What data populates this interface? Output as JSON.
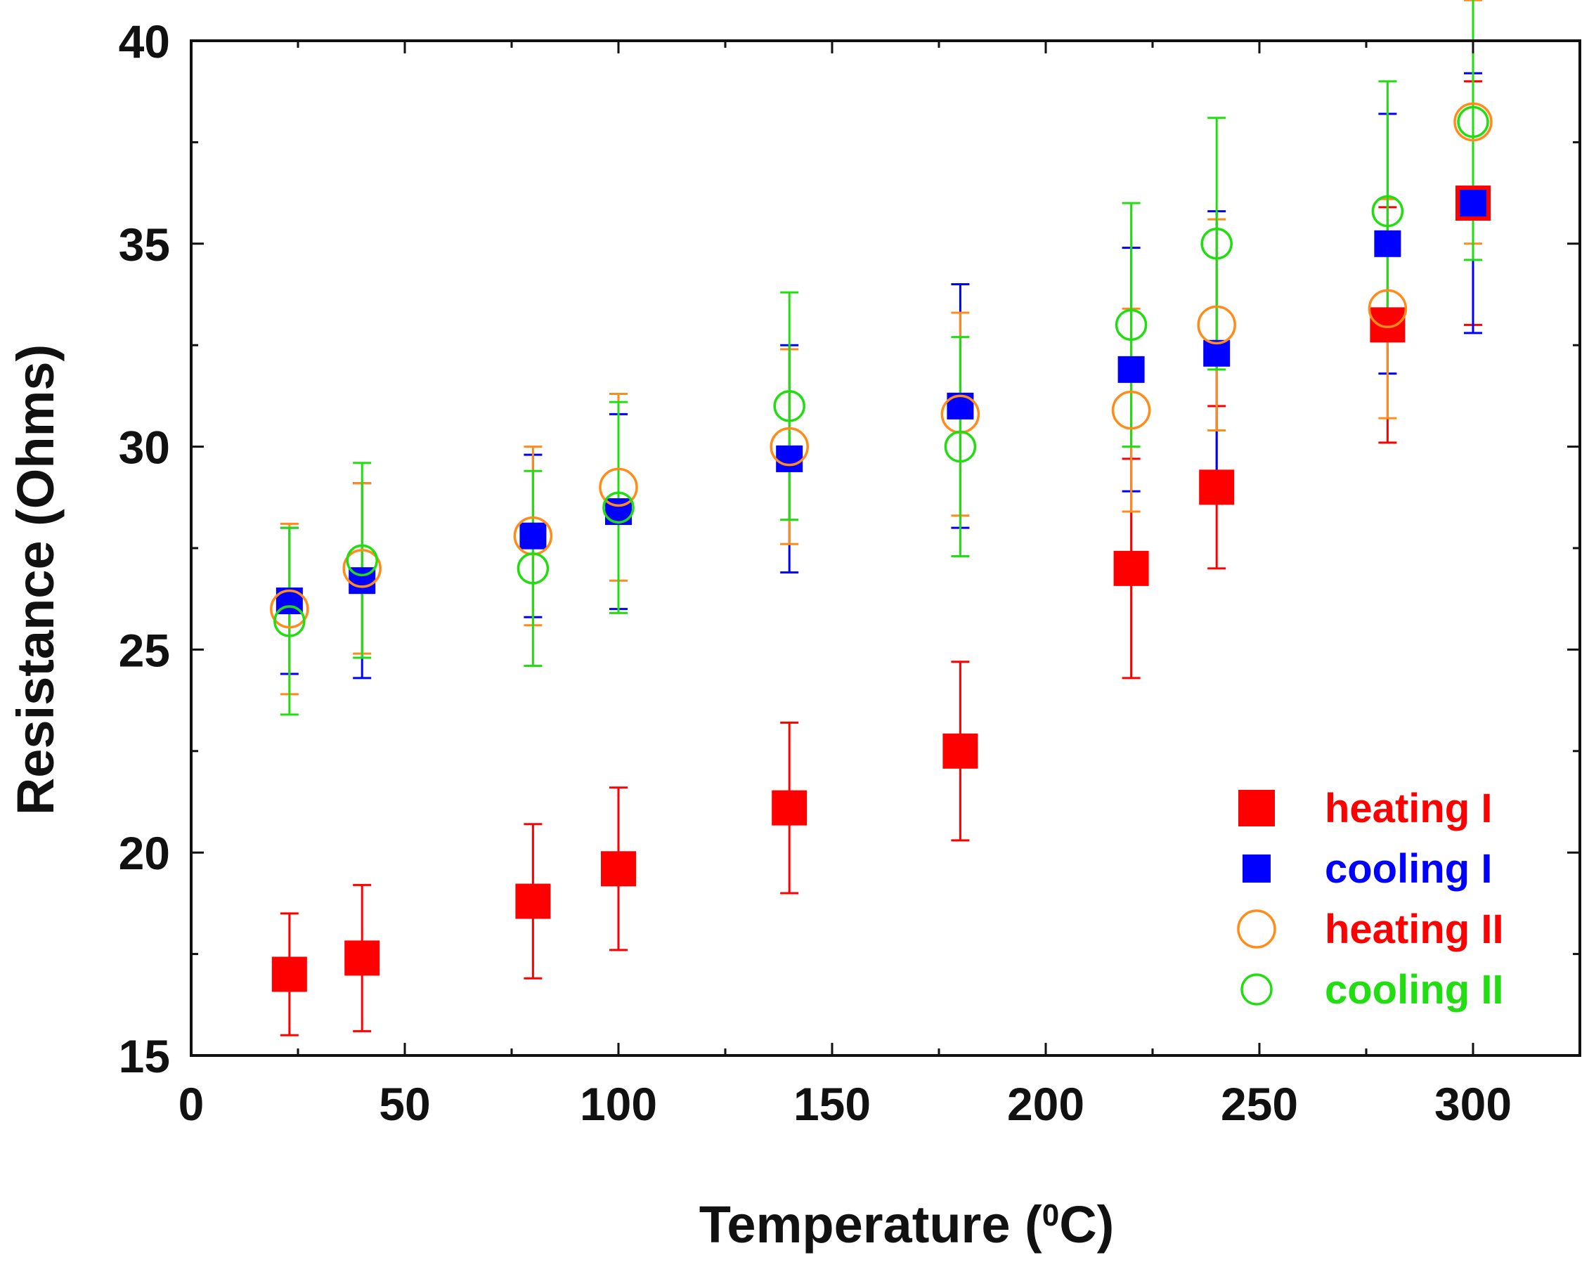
{
  "chart_data": {
    "type": "scatter",
    "title": "",
    "xlabel": "Temperature (",
    "xlabel_sup": "0",
    "xlabel_end": "C)",
    "ylabel": "Resistance (Ohms)",
    "xlim": [
      0,
      325
    ],
    "ylim": [
      15,
      40
    ],
    "x_ticks": [
      0,
      50,
      100,
      150,
      200,
      250,
      300
    ],
    "x_tick_labels": [
      "0",
      "50",
      "100",
      "150",
      "200",
      "250",
      "300"
    ],
    "y_ticks": [
      15,
      20,
      25,
      30,
      35,
      40
    ],
    "y_tick_labels": [
      "15",
      "20",
      "25",
      "30",
      "35",
      "40"
    ],
    "grid": false,
    "legend_position": "bottom-right",
    "series": [
      {
        "name": "heating I",
        "color": "#ff0000",
        "marker": "filled-square",
        "points": [
          {
            "x": 23,
            "y": 17.0,
            "err": 1.5
          },
          {
            "x": 40,
            "y": 17.4,
            "err": 1.8
          },
          {
            "x": 80,
            "y": 18.8,
            "err": 1.9
          },
          {
            "x": 100,
            "y": 19.6,
            "err": 2.0
          },
          {
            "x": 140,
            "y": 21.1,
            "err": 2.1
          },
          {
            "x": 180,
            "y": 22.5,
            "err": 2.2
          },
          {
            "x": 220,
            "y": 27.0,
            "err": 2.7
          },
          {
            "x": 240,
            "y": 29.0,
            "err": 2.0
          },
          {
            "x": 280,
            "y": 33.0,
            "err": 2.9
          },
          {
            "x": 300,
            "y": 36.0,
            "err": 3.0
          }
        ]
      },
      {
        "name": "cooling I",
        "color": "#0000ff",
        "marker": "filled-square",
        "points": [
          {
            "x": 23,
            "y": 26.2,
            "err": 1.8
          },
          {
            "x": 40,
            "y": 26.7,
            "err": 2.4
          },
          {
            "x": 80,
            "y": 27.8,
            "err": 2.0
          },
          {
            "x": 100,
            "y": 28.4,
            "err": 2.4
          },
          {
            "x": 140,
            "y": 29.7,
            "err": 2.8
          },
          {
            "x": 180,
            "y": 31.0,
            "err": 3.0
          },
          {
            "x": 220,
            "y": 31.9,
            "err": 3.0
          },
          {
            "x": 240,
            "y": 32.3,
            "err": 3.5
          },
          {
            "x": 280,
            "y": 35.0,
            "err": 3.2
          },
          {
            "x": 300,
            "y": 36.0,
            "err": 3.2
          }
        ]
      },
      {
        "name": "heating II",
        "color": "#ff8c1a",
        "marker": "open-circle",
        "points": [
          {
            "x": 23,
            "y": 26.0,
            "err": 2.1
          },
          {
            "x": 40,
            "y": 27.0,
            "err": 2.1
          },
          {
            "x": 80,
            "y": 27.8,
            "err": 2.2
          },
          {
            "x": 100,
            "y": 29.0,
            "err": 2.3
          },
          {
            "x": 140,
            "y": 30.0,
            "err": 2.4
          },
          {
            "x": 180,
            "y": 30.8,
            "err": 2.5
          },
          {
            "x": 220,
            "y": 30.9,
            "err": 2.5
          },
          {
            "x": 240,
            "y": 33.0,
            "err": 2.6
          },
          {
            "x": 280,
            "y": 33.4,
            "err": 2.7
          },
          {
            "x": 300,
            "y": 38.0,
            "err": 3.0
          }
        ]
      },
      {
        "name": "cooling II",
        "color": "#22dd11",
        "marker": "open-circle",
        "points": [
          {
            "x": 23,
            "y": 25.7,
            "err": 2.3
          },
          {
            "x": 40,
            "y": 27.2,
            "err": 2.4
          },
          {
            "x": 80,
            "y": 27.0,
            "err": 2.4
          },
          {
            "x": 100,
            "y": 28.5,
            "err": 2.6
          },
          {
            "x": 140,
            "y": 31.0,
            "err": 2.8
          },
          {
            "x": 180,
            "y": 30.0,
            "err": 2.7
          },
          {
            "x": 220,
            "y": 33.0,
            "err": 3.0
          },
          {
            "x": 240,
            "y": 35.0,
            "err": 3.1
          },
          {
            "x": 280,
            "y": 35.8,
            "err": 3.2
          },
          {
            "x": 300,
            "y": 38.0,
            "err": 3.4
          }
        ]
      }
    ],
    "legend": [
      {
        "label": "heating I",
        "text_color": "#ff0000",
        "marker": "filled-square",
        "marker_color": "#ff0000"
      },
      {
        "label": "cooling I",
        "text_color": "#0000ff",
        "marker": "filled-square",
        "marker_color": "#0000ff"
      },
      {
        "label": "heating II",
        "text_color": "#ff0000",
        "marker": "open-circle",
        "marker_color": "#ff8c1a"
      },
      {
        "label": "cooling II",
        "text_color": "#22dd11",
        "marker": "open-circle",
        "marker_color": "#22dd11"
      }
    ]
  }
}
